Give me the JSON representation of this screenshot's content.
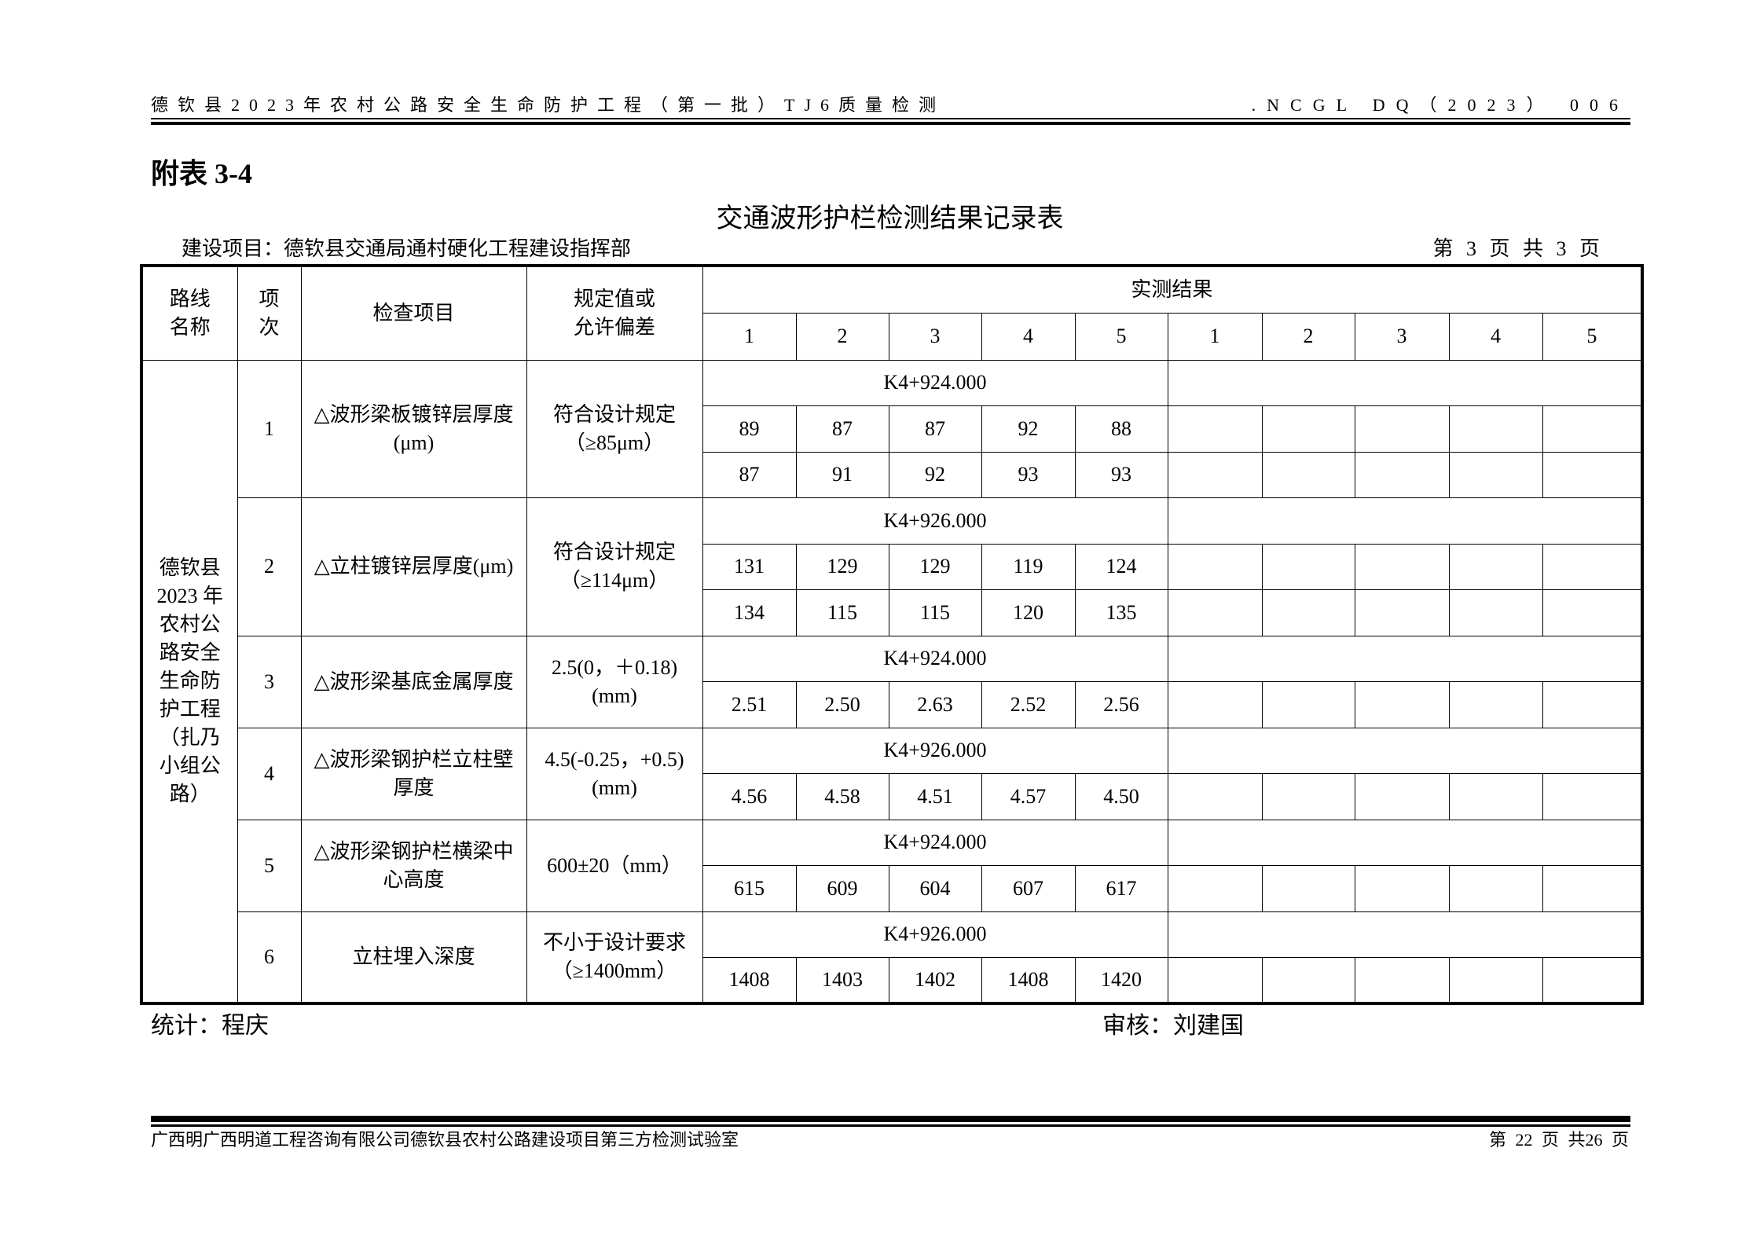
{
  "header": {
    "left": "德钦县2023年农村公路安全生命防护工程（第一批）TJ6质量检测",
    "right": ".NCGL DQ（2023） 006"
  },
  "appendix": "附表 3-4",
  "title": "交通波形护栏检测结果记录表",
  "project": "建设项目：德钦县交通局通村硬化工程建设指挥部",
  "page_info": "第 3 页  共 3 页",
  "table": {
    "headers": {
      "route": "路线名称",
      "route_lines": [
        "路线",
        "名称"
      ],
      "index_lines": [
        "项",
        "次"
      ],
      "item": "检查项目",
      "spec_lines": [
        "规定值或",
        "允许偏差"
      ],
      "results": "实测结果",
      "cols": [
        "1",
        "2",
        "3",
        "4",
        "5",
        "1",
        "2",
        "3",
        "4",
        "5"
      ]
    },
    "route_name": "德钦县2023年农村公路安全生命防护工程（扎乃小组公路）",
    "route_lines": [
      "德钦县",
      "2023 年",
      "农村公",
      "路安全",
      "生命防",
      "护工程",
      "（扎乃",
      "小组公",
      "路）"
    ],
    "rows": [
      {
        "index": "1",
        "item": "△波形梁板镀锌层厚度(μm)",
        "spec": "符合设计规定（≥85μm）",
        "station": "K4+924.000",
        "values": [
          [
            "89",
            "87",
            "87",
            "92",
            "88"
          ],
          [
            "87",
            "91",
            "92",
            "93",
            "93"
          ]
        ]
      },
      {
        "index": "2",
        "item": "△立柱镀锌层厚度(μm)",
        "spec": "符合设计规定（≥114μm）",
        "station": "K4+926.000",
        "values": [
          [
            "131",
            "129",
            "129",
            "119",
            "124"
          ],
          [
            "134",
            "115",
            "115",
            "120",
            "135"
          ]
        ]
      },
      {
        "index": "3",
        "item": "△波形梁基底金属厚度",
        "spec": "2.5(0，＋0.18)(mm)",
        "station": "K4+924.000",
        "values": [
          [
            "2.51",
            "2.50",
            "2.63",
            "2.52",
            "2.56"
          ]
        ]
      },
      {
        "index": "4",
        "item": "△波形梁钢护栏立柱壁厚度",
        "spec": "4.5(-0.25，+0.5)(mm)",
        "station": "K4+926.000",
        "values": [
          [
            "4.56",
            "4.58",
            "4.51",
            "4.57",
            "4.50"
          ]
        ]
      },
      {
        "index": "5",
        "item": "△波形梁钢护栏横梁中心高度",
        "spec": "600±20（mm）",
        "station": "K4+924.000",
        "values": [
          [
            "615",
            "609",
            "604",
            "607",
            "617"
          ]
        ]
      },
      {
        "index": "6",
        "item": "立柱埋入深度",
        "spec": "不小于设计要求（≥1400mm）",
        "station": "K4+926.000",
        "values": [
          [
            "1408",
            "1403",
            "1402",
            "1408",
            "1420"
          ]
        ]
      }
    ]
  },
  "signatures": {
    "statistics": "统计：程庆",
    "review": "审核：刘建国"
  },
  "footer": {
    "left": "广西明广西明道工程咨询有限公司德钦县农村公路建设项目第三方检测试验室",
    "right": "第 22 页 共26 页"
  }
}
